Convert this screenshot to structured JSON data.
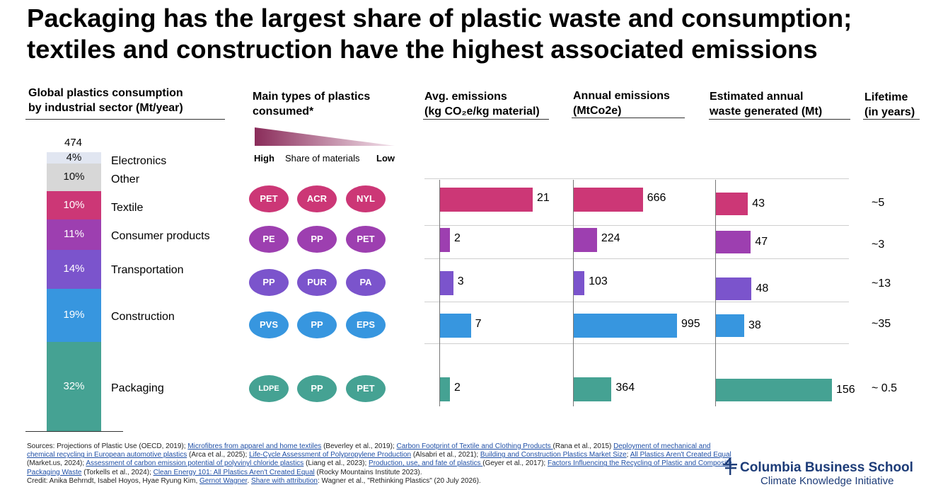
{
  "title": {
    "line1": "Packaging has the largest share of plastic waste and consumption;",
    "line2": "textiles and construction have the highest associated emissions"
  },
  "headers": {
    "consumption": [
      "Global plastics consumption",
      "by industrial sector (Mt/year)"
    ],
    "types": [
      "Main types of plastics",
      "consumed*"
    ],
    "avg_emissions": [
      "Avg. emissions",
      "(kg CO₂e/kg material)"
    ],
    "annual_emissions": [
      "Annual emissions",
      "(MtCo2e)"
    ],
    "waste": [
      "Estimated annual",
      "waste generated (Mt)"
    ],
    "lifetime": [
      "Lifetime",
      "(in years)"
    ]
  },
  "share_legend": {
    "high": "High",
    "middle": "Share of materials",
    "low": "Low"
  },
  "chart_data": {
    "type": "table",
    "total_consumption_label": "474",
    "sectors": [
      {
        "name": "Electronics",
        "share_label": "4%",
        "share": 4,
        "color": "#e1e6f1"
      },
      {
        "name": "Other",
        "share_label": "10%",
        "share": 10,
        "color": "#d7d7d7"
      },
      {
        "name": "Textile",
        "share_label": "10%",
        "share": 10,
        "color": "#cc3776",
        "plastics": [
          "PET",
          "ACR",
          "NYL"
        ],
        "avg_emissions": 21,
        "annual_emissions": 666,
        "waste": 43,
        "lifetime": "~5"
      },
      {
        "name": "Consumer products",
        "share_label": "11%",
        "share": 11,
        "color": "#9d3fb0",
        "plastics": [
          "PE",
          "PP",
          "PET"
        ],
        "avg_emissions": 2,
        "annual_emissions": 224,
        "waste": 47,
        "lifetime": "~3"
      },
      {
        "name": "Transportation",
        "share_label": "14%",
        "share": 14,
        "color": "#7b54cc",
        "plastics": [
          "PP",
          "PUR",
          "PA"
        ],
        "avg_emissions": 3,
        "annual_emissions": 103,
        "waste": 48,
        "lifetime": "~13"
      },
      {
        "name": "Construction",
        "share_label": "19%",
        "share": 19,
        "color": "#3796df",
        "plastics": [
          "PVS",
          "PP",
          "EPS"
        ],
        "avg_emissions": 7,
        "annual_emissions": 995,
        "waste": 38,
        "lifetime": "~35"
      },
      {
        "name": "Packaging",
        "share_label": "32%",
        "share": 32,
        "color": "#45a293",
        "plastics": [
          "LDPE",
          "PP",
          "PET"
        ],
        "avg_emissions": 2,
        "annual_emissions": 364,
        "waste": 156,
        "lifetime": "~ 0.5"
      }
    ]
  },
  "footer": {
    "s01": "Sources: Projections of Plastic Use (OECD, 2019); ",
    "l01": "Microfibres from apparel and home textiles",
    "s02": " (Beverley et al., 2019); ",
    "l02": "Carbon Footprint of Textile and Clothing Products ",
    "s03": "(Rana et al., 2015) ",
    "l03": "Deployment of mechanical and chemical recycling in European automotive plastics",
    "s04": " (Arca et al., 2025); ",
    "l04": "Life-Cycle Assessment of Polypropylene Production",
    "s05": " (Alsabri et al., 2021); ",
    "l05": "Building and Construction Plastics Market Size",
    "s06": "; ",
    "l06": "All Plastics Aren't Created Equal",
    "s07": " (Market.us, 2024); ",
    "l07": "Assessment of carbon emission potential of polyvinyl chloride plastics",
    "s08": " (Liang et al., 2023); ",
    "l08": "Production, use, and fate of plastics ",
    "s09": "(Geyer et al., 2017); ",
    "l09": "Factors Influencing the  Recycling of Plastic and Composite Packaging Waste",
    "s10": " (Torkells et al., 2024); ",
    "l10": "Clean Energy 101: All Plastics Aren't Created Equal",
    "s11": " (Rocky Mountains Institute 2023).",
    "credit_prefix": "Credit: Anika Behrndt, Isabel Hoyos, Hyae Ryung Kim, ",
    "credit_link1": "Gernot Wagner",
    "credit_mid": ". ",
    "credit_link2": "Share with attribution",
    "credit_suffix": ": Wagner et al., \"Rethinking Plastics\" (20 July 2026)."
  },
  "brand": {
    "name": "Columbia Business School",
    "sub": "Climate Knowledge Initiative",
    "color": "#1d3c78"
  }
}
